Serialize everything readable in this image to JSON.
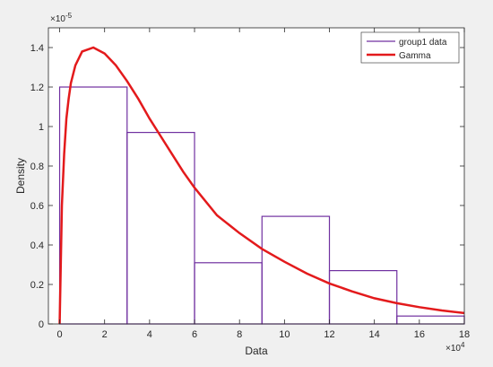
{
  "colors": {
    "figure_background": "#f0f0f0",
    "axes_background": "#ffffff",
    "axis": "#262626",
    "histogram_edge": "#7030a0",
    "gamma_line": "#e31a1c"
  },
  "chart_data": {
    "type": "bar",
    "title": "",
    "xlabel": "Data",
    "ylabel": "Density",
    "x_exponent_label": "×10",
    "x_exponent_power": "4",
    "y_exponent_label": "×10",
    "y_exponent_power": "-5",
    "xlim": [
      -0.5,
      18
    ],
    "ylim": [
      0,
      1.5
    ],
    "x_ticks": [
      0,
      2,
      4,
      6,
      8,
      10,
      12,
      14,
      16,
      18
    ],
    "x_tick_labels": [
      "0",
      "2",
      "4",
      "6",
      "8",
      "10",
      "12",
      "14",
      "16",
      "18"
    ],
    "y_ticks": [
      0,
      0.2,
      0.4,
      0.6,
      0.8,
      1.0,
      1.2,
      1.4
    ],
    "y_tick_labels": [
      "0",
      "0.2",
      "0.4",
      "0.6",
      "0.8",
      "1",
      "1.2",
      "1.4"
    ],
    "grid": false,
    "legend_position": "top-right",
    "histogram": {
      "name": "group1 data",
      "bin_edges": [
        0,
        3,
        6,
        9,
        12,
        15,
        18
      ],
      "values": [
        1.2,
        0.97,
        0.31,
        0.545,
        0.27,
        0.04
      ]
    },
    "gamma": {
      "name": "Gamma",
      "x": [
        0,
        0.1,
        0.2,
        0.3,
        0.4,
        0.5,
        0.7,
        1,
        1.5,
        2,
        2.5,
        3,
        3.5,
        4,
        4.5,
        5,
        5.5,
        6,
        7,
        8,
        9,
        10,
        11,
        12,
        13,
        14,
        15,
        16,
        17,
        18
      ],
      "y": [
        0,
        0.6,
        0.86,
        1.04,
        1.14,
        1.22,
        1.31,
        1.38,
        1.4,
        1.37,
        1.31,
        1.23,
        1.14,
        1.04,
        0.95,
        0.86,
        0.77,
        0.69,
        0.55,
        0.46,
        0.38,
        0.315,
        0.255,
        0.205,
        0.165,
        0.13,
        0.105,
        0.085,
        0.068,
        0.055
      ]
    }
  }
}
